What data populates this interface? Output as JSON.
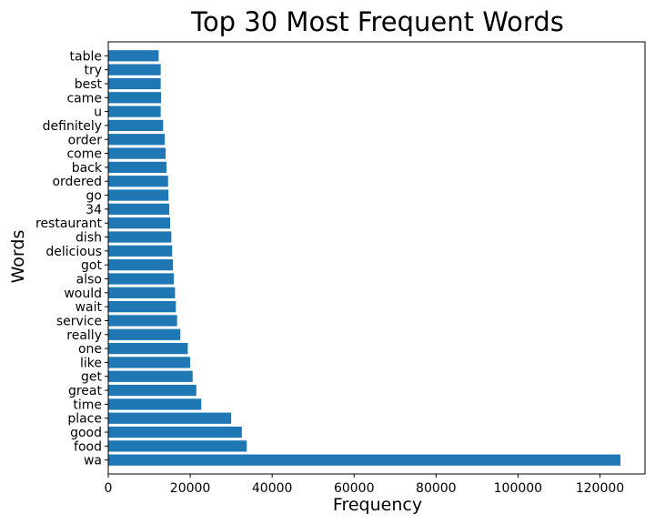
{
  "chart_data": {
    "type": "bar",
    "orientation": "horizontal",
    "title": "Top 30 Most Frequent Words",
    "xlabel": "Frequency",
    "ylabel": "Words",
    "xlim": [
      0,
      131000
    ],
    "xticks": [
      0,
      20000,
      40000,
      60000,
      80000,
      100000,
      120000
    ],
    "xtick_labels": [
      "0",
      "20000",
      "40000",
      "60000",
      "80000",
      "100000",
      "120000"
    ],
    "grid": false,
    "bar_color": "#1f77b4",
    "categories": [
      "wa",
      "food",
      "good",
      "place",
      "time",
      "great",
      "get",
      "like",
      "one",
      "really",
      "service",
      "wait",
      "would",
      "also",
      "got",
      "delicious",
      "dish",
      "restaurant",
      "34",
      "go",
      "ordered",
      "back",
      "come",
      "order",
      "definitely",
      "u",
      "came",
      "best",
      "try",
      "table"
    ],
    "values": [
      125000,
      33800,
      32600,
      30000,
      22700,
      21500,
      20600,
      20000,
      19400,
      17600,
      16800,
      16500,
      16300,
      16000,
      15800,
      15600,
      15400,
      15100,
      14900,
      14700,
      14600,
      14200,
      14000,
      13800,
      13400,
      12800,
      12900,
      12800,
      12800,
      12300
    ]
  }
}
